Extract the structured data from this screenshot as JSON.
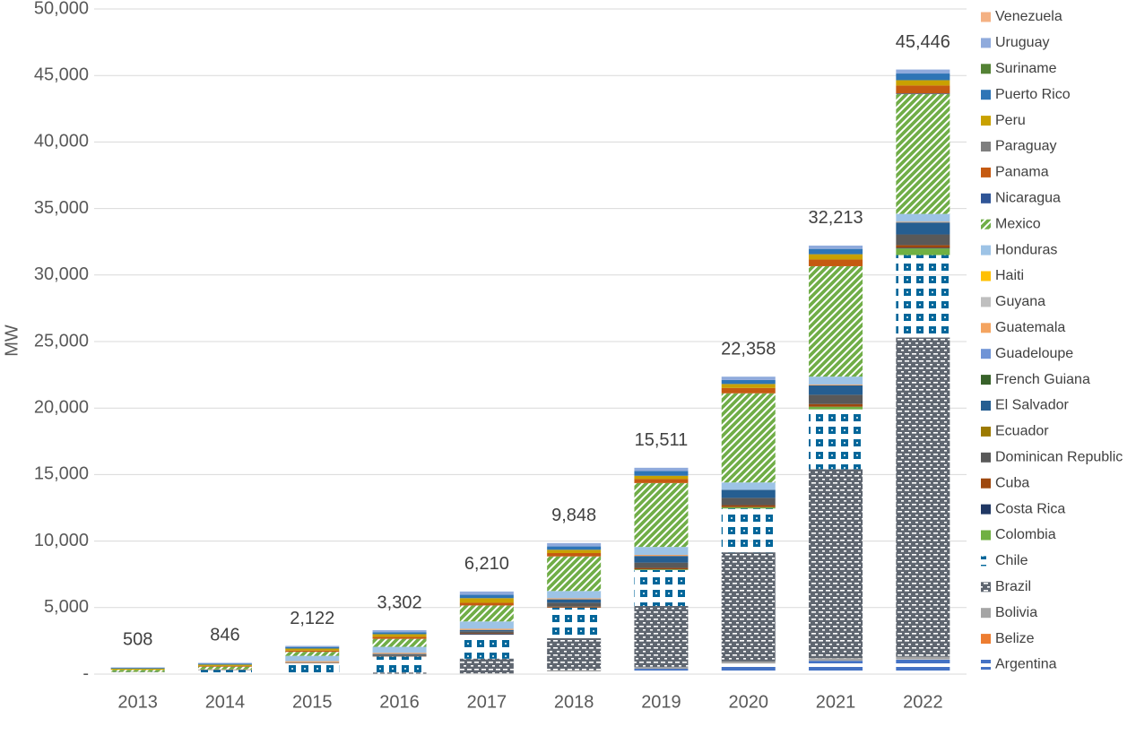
{
  "chart_data": {
    "type": "stacked-bar",
    "y_label": "MW",
    "categories": [
      "2013",
      "2014",
      "2015",
      "2016",
      "2017",
      "2018",
      "2019",
      "2020",
      "2021",
      "2022"
    ],
    "ylim": [
      0,
      50000
    ],
    "yticks": [
      {
        "value": 0,
        "label": "-"
      },
      {
        "value": 5000,
        "label": "5,000"
      },
      {
        "value": 10000,
        "label": "10,000"
      },
      {
        "value": 15000,
        "label": "15,000"
      },
      {
        "value": 20000,
        "label": "20,000"
      },
      {
        "value": 25000,
        "label": "25,000"
      },
      {
        "value": 30000,
        "label": "30,000"
      },
      {
        "value": 35000,
        "label": "35,000"
      },
      {
        "value": 40000,
        "label": "40,000"
      },
      {
        "value": 45000,
        "label": "45,000"
      },
      {
        "value": 50000,
        "label": "50,000"
      }
    ],
    "grid": true,
    "legend": "right",
    "totals": {
      "values": [
        508,
        846,
        2122,
        3302,
        6210,
        9848,
        15511,
        22358,
        32213,
        45446
      ],
      "value_labels": [
        "508",
        "846",
        "2,122",
        "3,302",
        "6,210",
        "9,848",
        "15,511",
        "22,358",
        "32,213",
        "45,446"
      ]
    },
    "series": [
      {
        "name": "Argentina",
        "color": "#4472c4",
        "pattern": "stripes",
        "values": [
          8,
          10,
          10,
          10,
          10,
          200,
          400,
          800,
          1000,
          1100
        ]
      },
      {
        "name": "Belize",
        "color": "#ed7d31",
        "values": [
          0,
          0,
          0,
          0,
          0,
          0,
          0,
          0,
          0,
          0
        ]
      },
      {
        "name": "Bolivia",
        "color": "#a5a5a5",
        "values": [
          0,
          0,
          0,
          5,
          50,
          100,
          120,
          150,
          200,
          200
        ]
      },
      {
        "name": "Brazil",
        "color": "#5f6670",
        "pattern": "dashes",
        "values": [
          0,
          0,
          20,
          100,
          1100,
          2400,
          4600,
          8200,
          14200,
          24000
        ]
      },
      {
        "name": "Chile",
        "color": "#00669a",
        "pattern": "dots",
        "values": [
          150,
          300,
          800,
          1200,
          1800,
          2300,
          2700,
          3300,
          4500,
          6200
        ]
      },
      {
        "name": "Colombia",
        "color": "#70b042",
        "values": [
          0,
          0,
          0,
          0,
          0,
          0,
          50,
          100,
          200,
          500
        ]
      },
      {
        "name": "Costa Rica",
        "color": "#203864",
        "values": [
          0,
          0,
          0,
          17,
          60,
          0,
          11,
          0,
          0,
          50
        ]
      },
      {
        "name": "Cuba",
        "color": "#9e480e",
        "values": [
          0,
          0,
          12,
          30,
          50,
          70,
          100,
          150,
          200,
          200
        ]
      },
      {
        "name": "Dominican Republic",
        "color": "#595959",
        "values": [
          0,
          30,
          50,
          100,
          150,
          300,
          400,
          550,
          700,
          800
        ]
      },
      {
        "name": "Ecuador",
        "color": "#9c7a00",
        "values": [
          0,
          0,
          0,
          0,
          0,
          0,
          0,
          0,
          0,
          0
        ]
      },
      {
        "name": "El Salvador",
        "color": "#255e91",
        "values": [
          0,
          0,
          0,
          50,
          100,
          250,
          500,
          600,
          700,
          900
        ]
      },
      {
        "name": "French Guiana",
        "color": "#38622a",
        "values": [
          0,
          0,
          0,
          0,
          0,
          0,
          0,
          0,
          0,
          0
        ]
      },
      {
        "name": "Guadeloupe",
        "color": "#6f94d6",
        "values": [
          0,
          0,
          0,
          0,
          0,
          0,
          0,
          0,
          0,
          0
        ]
      },
      {
        "name": "Guatemala",
        "color": "#f4a460",
        "values": [
          10,
          20,
          80,
          90,
          90,
          78,
          80,
          8,
          63,
          46
        ]
      },
      {
        "name": "Guyana",
        "color": "#bfbfbf",
        "values": [
          0,
          0,
          0,
          0,
          0,
          0,
          0,
          0,
          0,
          0
        ]
      },
      {
        "name": "Haiti",
        "color": "#ffc000",
        "values": [
          0,
          0,
          0,
          0,
          0,
          0,
          0,
          0,
          0,
          0
        ]
      },
      {
        "name": "Honduras",
        "color": "#9dc3e6",
        "values": [
          0,
          0,
          400,
          450,
          550,
          550,
          600,
          550,
          600,
          600
        ]
      },
      {
        "name": "Mexico",
        "color": "#70ad47",
        "pattern": "diagonal",
        "values": [
          150,
          200,
          300,
          600,
          1200,
          2600,
          4800,
          6700,
          8300,
          9000
        ]
      },
      {
        "name": "Nicaragua",
        "color": "#2f5597",
        "values": [
          0,
          0,
          0,
          0,
          0,
          0,
          0,
          0,
          0,
          50
        ]
      },
      {
        "name": "Panama",
        "color": "#c55a11",
        "values": [
          0,
          50,
          100,
          150,
          200,
          250,
          300,
          400,
          500,
          600
        ]
      },
      {
        "name": "Paraguay",
        "color": "#7f7f7f",
        "values": [
          0,
          0,
          0,
          0,
          0,
          0,
          0,
          0,
          0,
          0
        ]
      },
      {
        "name": "Peru",
        "color": "#c9a100",
        "values": [
          100,
          100,
          150,
          200,
          350,
          250,
          250,
          300,
          400,
          400
        ]
      },
      {
        "name": "Puerto Rico",
        "color": "#2e75b6",
        "values": [
          60,
          80,
          120,
          150,
          250,
          250,
          350,
          300,
          400,
          500
        ]
      },
      {
        "name": "Suriname",
        "color": "#548235",
        "values": [
          0,
          0,
          0,
          0,
          0,
          0,
          0,
          0,
          0,
          0
        ]
      },
      {
        "name": "Uruguay",
        "color": "#8faadc",
        "values": [
          30,
          56,
          80,
          150,
          250,
          250,
          250,
          250,
          250,
          300
        ]
      },
      {
        "name": "Venezuela",
        "color": "#f4b183",
        "values": [
          0,
          0,
          0,
          0,
          0,
          0,
          0,
          0,
          0,
          0
        ]
      }
    ]
  }
}
